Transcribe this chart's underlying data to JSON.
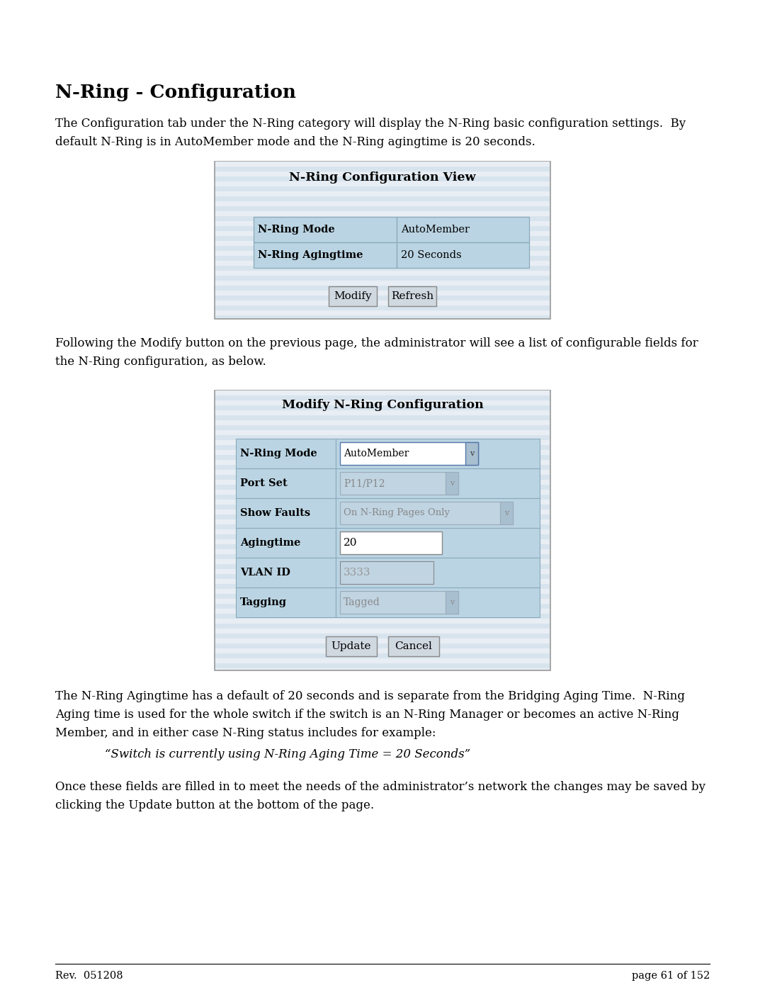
{
  "page_bg": "#ffffff",
  "title": "N-Ring - Configuration",
  "para1_line1": "The Configuration tab under the N-Ring category will display the N-Ring basic configuration settings.  By",
  "para1_line2": "default N-Ring is in AutoMember mode and the N-Ring agingtime is 20 seconds.",
  "box1_title": "N-Ring Configuration View",
  "box1_rows": [
    [
      "N-Ring Mode",
      "AutoMember"
    ],
    [
      "N-Ring Agingtime",
      "20 Seconds"
    ]
  ],
  "para2_line1": "Following the Modify button on the previous page, the administrator will see a list of configurable fields for",
  "para2_line2": "the N-Ring configuration, as below.",
  "box2_title": "Modify N-Ring Configuration",
  "box2_rows": [
    [
      "N-Ring Mode",
      "AutoMember",
      "dropdown_active"
    ],
    [
      "Port Set",
      "P11/P12",
      "dropdown_inactive"
    ],
    [
      "Show Faults",
      "On N-Ring Pages Only",
      "dropdown_inactive_wide"
    ],
    [
      "Agingtime",
      "20",
      "input_active"
    ],
    [
      "VLAN ID",
      "3333",
      "input_inactive"
    ],
    [
      "Tagging",
      "Tagged",
      "dropdown_inactive"
    ]
  ],
  "para3_line1": "The N-Ring Agingtime has a default of 20 seconds and is separate from the Bridging Aging Time.  N-Ring",
  "para3_line2": "Aging time is used for the whole switch if the switch is an N-Ring Manager or becomes an active N-Ring",
  "para3_line3": "Member, and in either case N-Ring status includes for example:",
  "para3_line4": "“Switch is currently using N-Ring Aging Time = 20 Seconds”",
  "para4_line1": "Once these fields are filled in to meet the needs of the administrator’s network the changes may be saved by",
  "para4_line2": "clicking the Update button at the bottom of the page.",
  "footer_left": "Rev.  051208",
  "footer_right": "page 61 of 152",
  "cell_bg_blue": "#bad4e3",
  "cell_border": "#8aaabb",
  "box_bg_stripe": "#d8e4ed",
  "box_border": "#999999",
  "btn_bg": "#d0d8e0",
  "btn_border": "#888888"
}
